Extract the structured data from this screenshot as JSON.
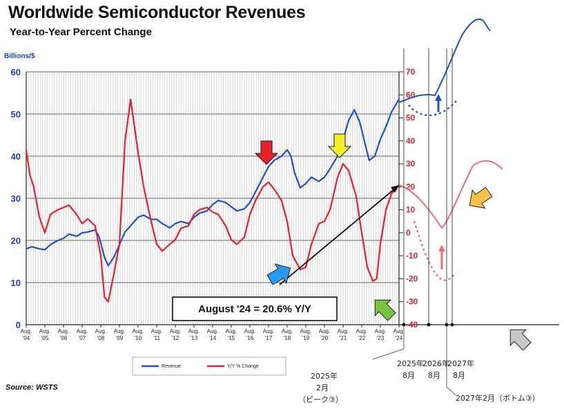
{
  "header": {
    "title": "Worldwide Semiconductor Revenues",
    "subtitle": "Year-to-Year Percent Change",
    "unit": "Billions/$"
  },
  "source": "Source: WSTS",
  "colors": {
    "revenue": "#1f4fd1",
    "yoy": "#e8202a",
    "grid": "#888888",
    "anno": "#111111"
  },
  "chart_data": {
    "type": "line",
    "x_range": [
      "2004-08",
      "2024-08"
    ],
    "x_tick_labels": [
      {
        "l1": "Aug.",
        "l2": "'04",
        "x": 2004.6
      },
      {
        "l1": "Aug.",
        "l2": "'05",
        "x": 2005.6
      },
      {
        "l1": "Aug.",
        "l2": "'06",
        "x": 2006.6
      },
      {
        "l1": "Aug.",
        "l2": "'07",
        "x": 2007.6
      },
      {
        "l1": "Aug.",
        "l2": "'08",
        "x": 2008.6
      },
      {
        "l1": "Aug.",
        "l2": "'09",
        "x": 2009.6
      },
      {
        "l1": "Aug.",
        "l2": "'10",
        "x": 2010.6
      },
      {
        "l1": "Aug.",
        "l2": "'11",
        "x": 2011.6
      },
      {
        "l1": "Aug.",
        "l2": "'12",
        "x": 2012.6
      },
      {
        "l1": "Aug.",
        "l2": "'13",
        "x": 2013.6
      },
      {
        "l1": "Aug.",
        "l2": "'14",
        "x": 2014.6
      },
      {
        "l1": "Aug.",
        "l2": "'15",
        "x": 2015.6
      },
      {
        "l1": "Aug.",
        "l2": "'16",
        "x": 2016.6
      },
      {
        "l1": "Aug.",
        "l2": "'17",
        "x": 2017.6
      },
      {
        "l1": "Aug.",
        "l2": "'18",
        "x": 2018.6
      },
      {
        "l1": "Aug.",
        "l2": "'19",
        "x": 2019.6
      },
      {
        "l1": "Aug.",
        "l2": "'20",
        "x": 2020.6
      },
      {
        "l1": "Aug.",
        "l2": "'21",
        "x": 2021.6
      },
      {
        "l1": "Aug.",
        "l2": "'22",
        "x": 2022.6
      },
      {
        "l1": "Aug.",
        "l2": "'23",
        "x": 2023.6
      },
      {
        "l1": "Aug.",
        "l2": "'24",
        "x": 2024.6
      }
    ],
    "y_left": {
      "min": 0,
      "max": 60,
      "ticks": [
        0,
        10,
        20,
        30,
        40,
        50,
        60
      ]
    },
    "y_right": {
      "min": -40,
      "max": 70,
      "ticks": [
        -40,
        -30,
        -20,
        -10,
        0,
        10,
        20,
        30,
        40,
        50,
        60,
        70
      ]
    },
    "grid": true,
    "legend_position": "bottom",
    "series": [
      {
        "name": "Revenue",
        "axis": "left",
        "points": [
          [
            2004.6,
            18
          ],
          [
            2004.9,
            18.5
          ],
          [
            2005.3,
            18
          ],
          [
            2005.6,
            17.8
          ],
          [
            2005.9,
            19
          ],
          [
            2006.3,
            20
          ],
          [
            2006.6,
            20.5
          ],
          [
            2006.9,
            21.5
          ],
          [
            2007.3,
            21
          ],
          [
            2007.6,
            21.8
          ],
          [
            2007.9,
            22
          ],
          [
            2008.3,
            22.5
          ],
          [
            2008.5,
            21
          ],
          [
            2008.8,
            16
          ],
          [
            2009.0,
            14
          ],
          [
            2009.3,
            16
          ],
          [
            2009.6,
            19
          ],
          [
            2009.9,
            22
          ],
          [
            2010.3,
            24
          ],
          [
            2010.6,
            25.5
          ],
          [
            2010.9,
            26
          ],
          [
            2011.3,
            25
          ],
          [
            2011.6,
            25
          ],
          [
            2011.9,
            24
          ],
          [
            2012.3,
            23
          ],
          [
            2012.6,
            24
          ],
          [
            2012.9,
            24.5
          ],
          [
            2013.3,
            24
          ],
          [
            2013.6,
            25.5
          ],
          [
            2013.9,
            26.5
          ],
          [
            2014.3,
            27
          ],
          [
            2014.6,
            28.5
          ],
          [
            2014.9,
            29.5
          ],
          [
            2015.3,
            29
          ],
          [
            2015.6,
            28
          ],
          [
            2015.9,
            27
          ],
          [
            2016.3,
            27.5
          ],
          [
            2016.6,
            29
          ],
          [
            2016.9,
            31.5
          ],
          [
            2017.3,
            35
          ],
          [
            2017.6,
            37.5
          ],
          [
            2017.9,
            39
          ],
          [
            2018.3,
            40
          ],
          [
            2018.6,
            41.5
          ],
          [
            2018.8,
            40
          ],
          [
            2019.0,
            36
          ],
          [
            2019.3,
            32.5
          ],
          [
            2019.6,
            33.5
          ],
          [
            2019.9,
            35
          ],
          [
            2020.3,
            34
          ],
          [
            2020.6,
            35
          ],
          [
            2020.9,
            37
          ],
          [
            2021.3,
            40
          ],
          [
            2021.6,
            44
          ],
          [
            2021.9,
            48.5
          ],
          [
            2022.2,
            51
          ],
          [
            2022.5,
            48
          ],
          [
            2022.8,
            42.5
          ],
          [
            2023.0,
            39
          ],
          [
            2023.3,
            40
          ],
          [
            2023.6,
            44
          ],
          [
            2023.9,
            47
          ],
          [
            2024.2,
            50.5
          ],
          [
            2024.6,
            53.5
          ]
        ]
      },
      {
        "name": "Y/Y % Change",
        "axis": "right",
        "points": [
          [
            2004.6,
            36
          ],
          [
            2004.8,
            25
          ],
          [
            2005.0,
            20
          ],
          [
            2005.3,
            7
          ],
          [
            2005.6,
            0
          ],
          [
            2005.9,
            8
          ],
          [
            2006.3,
            10
          ],
          [
            2006.6,
            11
          ],
          [
            2006.9,
            12
          ],
          [
            2007.3,
            8
          ],
          [
            2007.6,
            4
          ],
          [
            2007.9,
            6
          ],
          [
            2008.3,
            3
          ],
          [
            2008.6,
            -10
          ],
          [
            2008.8,
            -28
          ],
          [
            2009.0,
            -30
          ],
          [
            2009.3,
            -18
          ],
          [
            2009.6,
            -5
          ],
          [
            2009.9,
            40
          ],
          [
            2010.2,
            58
          ],
          [
            2010.6,
            35
          ],
          [
            2010.9,
            20
          ],
          [
            2011.3,
            5
          ],
          [
            2011.6,
            -5
          ],
          [
            2011.9,
            -8
          ],
          [
            2012.3,
            -5
          ],
          [
            2012.6,
            -3
          ],
          [
            2012.9,
            2
          ],
          [
            2013.3,
            3
          ],
          [
            2013.6,
            8
          ],
          [
            2013.9,
            10
          ],
          [
            2014.3,
            11
          ],
          [
            2014.6,
            9
          ],
          [
            2014.9,
            8
          ],
          [
            2015.3,
            3
          ],
          [
            2015.6,
            -3
          ],
          [
            2015.9,
            -5
          ],
          [
            2016.3,
            -2
          ],
          [
            2016.6,
            8
          ],
          [
            2016.9,
            14
          ],
          [
            2017.3,
            20
          ],
          [
            2017.6,
            22
          ],
          [
            2017.9,
            19
          ],
          [
            2018.3,
            14
          ],
          [
            2018.6,
            5
          ],
          [
            2018.9,
            -10
          ],
          [
            2019.3,
            -16
          ],
          [
            2019.6,
            -15
          ],
          [
            2019.9,
            -5
          ],
          [
            2020.3,
            4
          ],
          [
            2020.6,
            5
          ],
          [
            2020.9,
            10
          ],
          [
            2021.3,
            24
          ],
          [
            2021.6,
            30
          ],
          [
            2021.9,
            27
          ],
          [
            2022.3,
            16
          ],
          [
            2022.6,
            0
          ],
          [
            2022.9,
            -15
          ],
          [
            2023.2,
            -21
          ],
          [
            2023.4,
            -20
          ],
          [
            2023.6,
            -5
          ],
          [
            2023.9,
            10
          ],
          [
            2024.2,
            17
          ],
          [
            2024.6,
            20.6
          ]
        ]
      }
    ],
    "annotations": {
      "callout": "August '24 = 20.6% Y/Y",
      "handwritten_x_labels": [
        "2025年",
        "8月",
        "2026年",
        "8月",
        "2027年",
        "8月"
      ],
      "handwritten_note_1": [
        "2025年",
        "2月",
        "（ピーク③）"
      ],
      "handwritten_note_2": "2027年2月（ボトム③）"
    }
  }
}
